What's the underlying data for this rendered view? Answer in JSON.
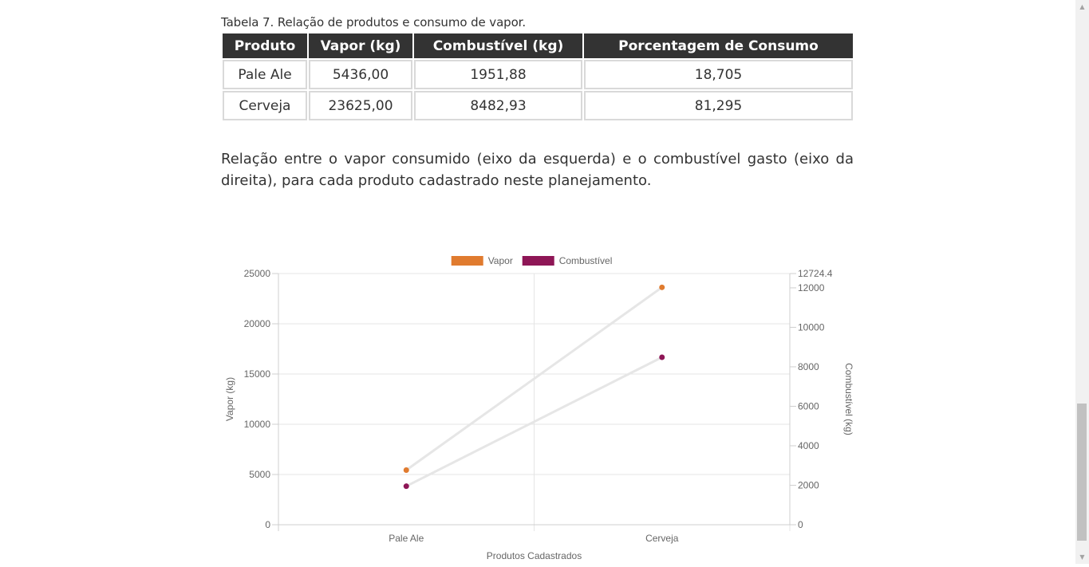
{
  "table": {
    "caption": "Tabela 7. Relação de produtos e consumo de vapor.",
    "headers": [
      "Produto",
      "Vapor (kg)",
      "Combustível (kg)",
      "Porcentagem de Consumo"
    ],
    "rows": [
      [
        "Pale Ale",
        "5436,00",
        "1951,88",
        "18,705"
      ],
      [
        "Cerveja",
        "23625,00",
        "8482,93",
        "81,295"
      ]
    ]
  },
  "paragraph": "Relação entre o vapor consumido (eixo da esquerda) e o combustível gasto (eixo da direita), para cada produto cadastrado neste planejamento.",
  "chart_data": {
    "type": "line",
    "categories": [
      "Pale Ale",
      "Cerveja"
    ],
    "series": [
      {
        "name": "Vapor",
        "axis": "left",
        "color": "#e07b2f",
        "values": [
          5436.0,
          23625.0
        ]
      },
      {
        "name": "Combustível",
        "axis": "right",
        "color": "#8e1656",
        "values": [
          1951.88,
          8482.93
        ]
      }
    ],
    "xlabel": "Produtos Cadastrados",
    "ylabel": "Vapor (kg)",
    "y2label": "Combustível (kg)",
    "ylim": [
      0,
      25000
    ],
    "y2lim": [
      0,
      12724.4
    ],
    "yticks": [
      "0",
      "5000",
      "10000",
      "15000",
      "20000",
      "25000"
    ],
    "y2ticks": [
      "0",
      "2000",
      "4000",
      "6000",
      "8000",
      "10000",
      "12000",
      "12724.4"
    ],
    "line_color": "#e6e6e6",
    "legend_position": "top",
    "grid": true
  }
}
